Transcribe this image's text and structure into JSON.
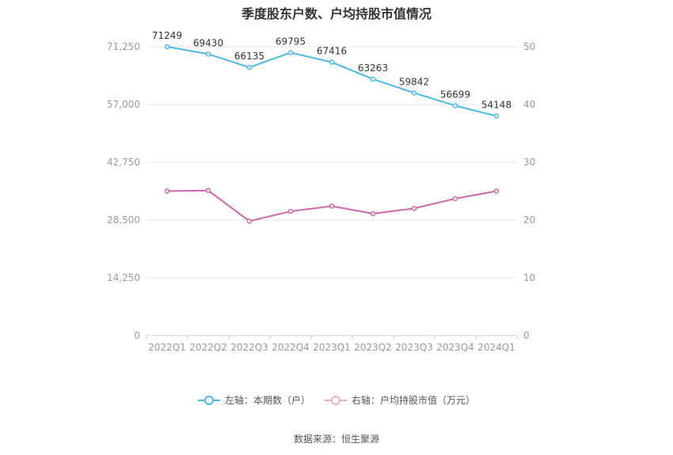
{
  "title": "季度股东户数、户均持股市值情况",
  "source_label": "数据来源：恒生聚源",
  "colors": {
    "left_series": "#4bb8ec",
    "right_series": "#d065ab",
    "grid": "#e6e6e6",
    "axis_text": "#999999"
  },
  "chart_data": {
    "type": "line",
    "title": "季度股东户数、户均持股市值情况",
    "categories": [
      "2022Q1",
      "2022Q2",
      "2022Q3",
      "2022Q4",
      "2023Q1",
      "2023Q2",
      "2023Q3",
      "2023Q4",
      "2024Q1"
    ],
    "left_axis": {
      "min": 0,
      "max": 71250,
      "ticks": [
        "0",
        "14,250",
        "28,500",
        "42,750",
        "57,000",
        "71,250"
      ],
      "tick_values": [
        0,
        14250,
        28500,
        42750,
        57000,
        71250
      ]
    },
    "right_axis": {
      "min": 0,
      "max": 50,
      "ticks": [
        "0",
        "10",
        "20",
        "30",
        "40",
        "50"
      ],
      "tick_values": [
        0,
        10,
        20,
        30,
        40,
        50
      ]
    },
    "series": [
      {
        "name": "左轴：本期数（户）",
        "axis": "left",
        "values": [
          71249,
          69430,
          66135,
          69795,
          67416,
          63263,
          59842,
          56699,
          54148
        ],
        "labels": [
          "71249",
          "69430",
          "66135",
          "69795",
          "67416",
          "63263",
          "59842",
          "56699",
          "54148"
        ]
      },
      {
        "name": "右轴：户均持股市值（万元）",
        "axis": "right",
        "values": [
          25.0,
          25.1,
          19.8,
          21.5,
          22.4,
          21.1,
          22.0,
          23.7,
          25.0
        ]
      }
    ],
    "grid": true,
    "legend_position": "bottom"
  }
}
